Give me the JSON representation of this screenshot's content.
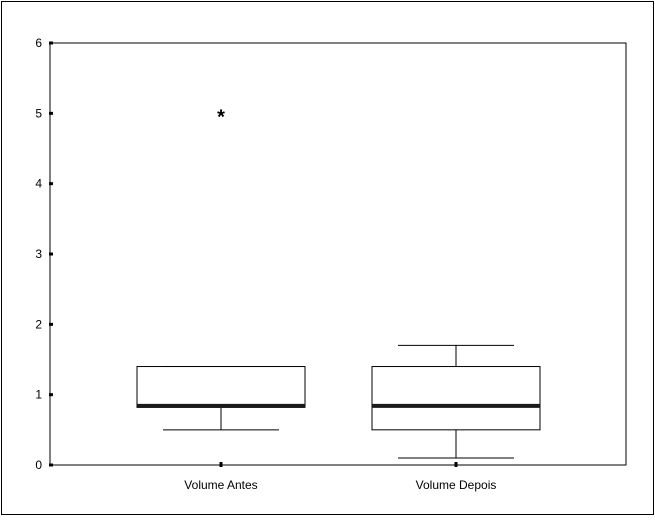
{
  "chart_data": {
    "type": "boxplot",
    "title": "",
    "xlabel": "",
    "ylabel": "",
    "ylim": [
      0,
      6
    ],
    "yticks": [
      "0",
      "1",
      "2",
      "3",
      "4",
      "5",
      "6"
    ],
    "grid": false,
    "legend": "none",
    "categories": [
      "Volume Antes",
      "Volume Depois"
    ],
    "boxes": [
      {
        "name": "Volume Antes",
        "whisker_low": 0.5,
        "q1": 0.82,
        "median": 0.84,
        "q3": 1.4,
        "whisker_high": 1.4,
        "outliers": [],
        "extremes": [
          5.0
        ]
      },
      {
        "name": "Volume Depois",
        "whisker_low": 0.1,
        "q1": 0.5,
        "median": 0.84,
        "q3": 1.4,
        "whisker_high": 1.7,
        "outliers": [],
        "extremes": []
      }
    ],
    "colors": {
      "box_fill": "#ffffff",
      "stroke": "#000000",
      "median": "#1a1a1a"
    }
  }
}
